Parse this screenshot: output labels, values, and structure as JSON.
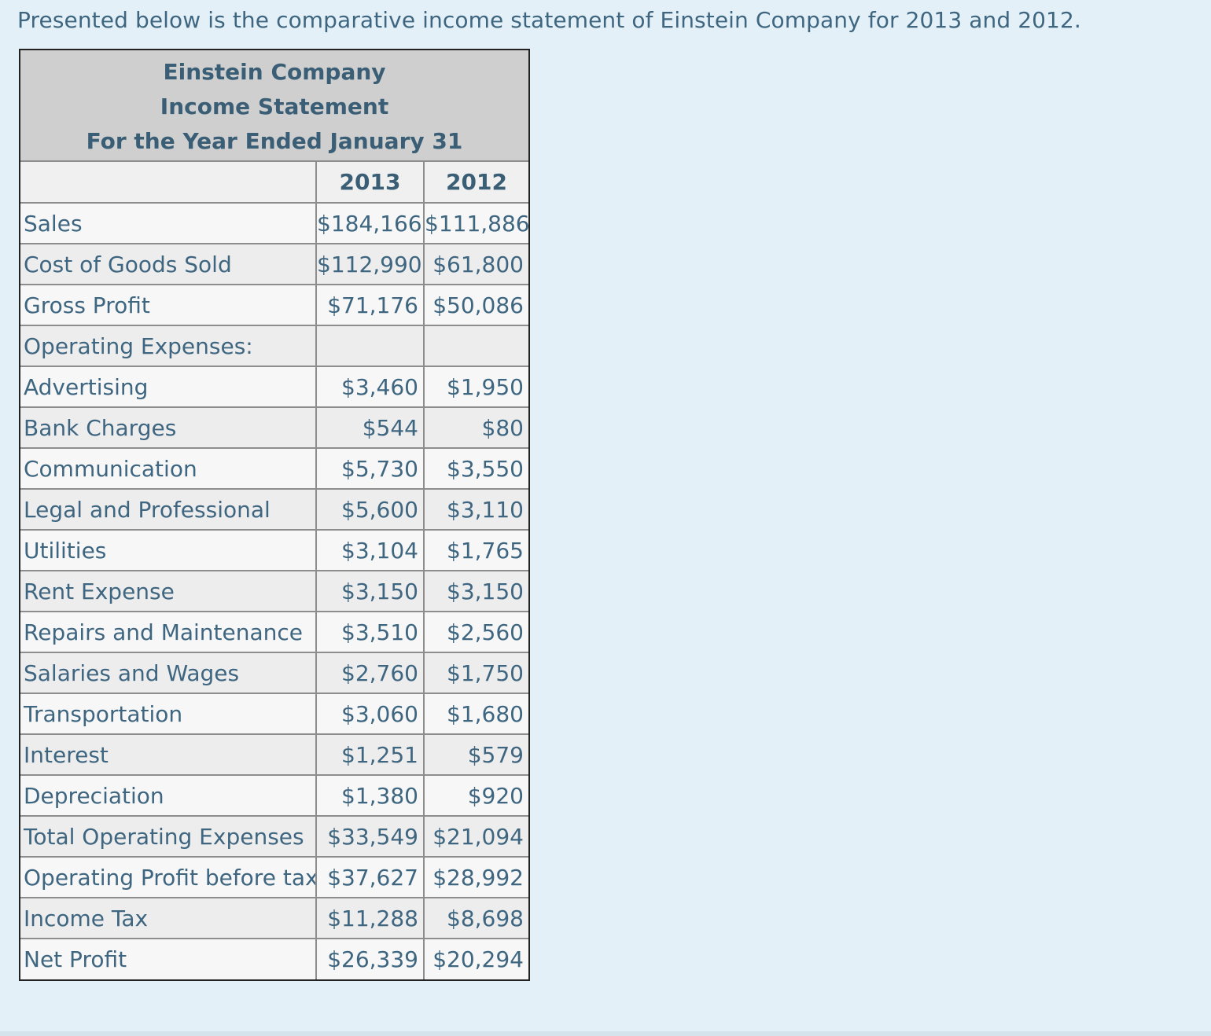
{
  "intro_text": "Presented below is the comparative income statement of Einstein Company for 2013 and 2012.",
  "statement": {
    "company": "Einstein Company",
    "title": "Income Statement",
    "period": "For the Year Ended January 31",
    "header_label": "",
    "year_a": "2013",
    "year_b": "2012",
    "rows": [
      {
        "label": "Sales",
        "a": "$184,166",
        "b": "$111,886"
      },
      {
        "label": "Cost of Goods Sold",
        "a": "$112,990",
        "b": "$61,800"
      },
      {
        "label": "Gross Profit",
        "a": "$71,176",
        "b": "$50,086"
      },
      {
        "label": "Operating Expenses:",
        "a": "",
        "b": ""
      },
      {
        "label": "Advertising",
        "a": "$3,460",
        "b": "$1,950"
      },
      {
        "label": "Bank Charges",
        "a": "$544",
        "b": "$80"
      },
      {
        "label": "Communication",
        "a": "$5,730",
        "b": "$3,550"
      },
      {
        "label": "Legal and Professional",
        "a": "$5,600",
        "b": "$3,110"
      },
      {
        "label": "Utilities",
        "a": "$3,104",
        "b": "$1,765"
      },
      {
        "label": "Rent Expense",
        "a": "$3,150",
        "b": "$3,150"
      },
      {
        "label": "Repairs and Maintenance",
        "a": "$3,510",
        "b": "$2,560"
      },
      {
        "label": "Salaries and Wages",
        "a": "$2,760",
        "b": "$1,750"
      },
      {
        "label": "Transportation",
        "a": "$3,060",
        "b": "$1,680"
      },
      {
        "label": "Interest",
        "a": "$1,251",
        "b": "$579"
      },
      {
        "label": "Depreciation",
        "a": "$1,380",
        "b": "$920"
      },
      {
        "label": "Total Operating Expenses",
        "a": "$33,549",
        "b": "$21,094"
      },
      {
        "label": "Operating Profit before tax",
        "a": "$37,627",
        "b": "$28,992"
      },
      {
        "label": "Income Tax",
        "a": "$11,288",
        "b": "$8,698"
      },
      {
        "label": "Net Profit",
        "a": "$26,339",
        "b": "$20,294"
      }
    ]
  }
}
